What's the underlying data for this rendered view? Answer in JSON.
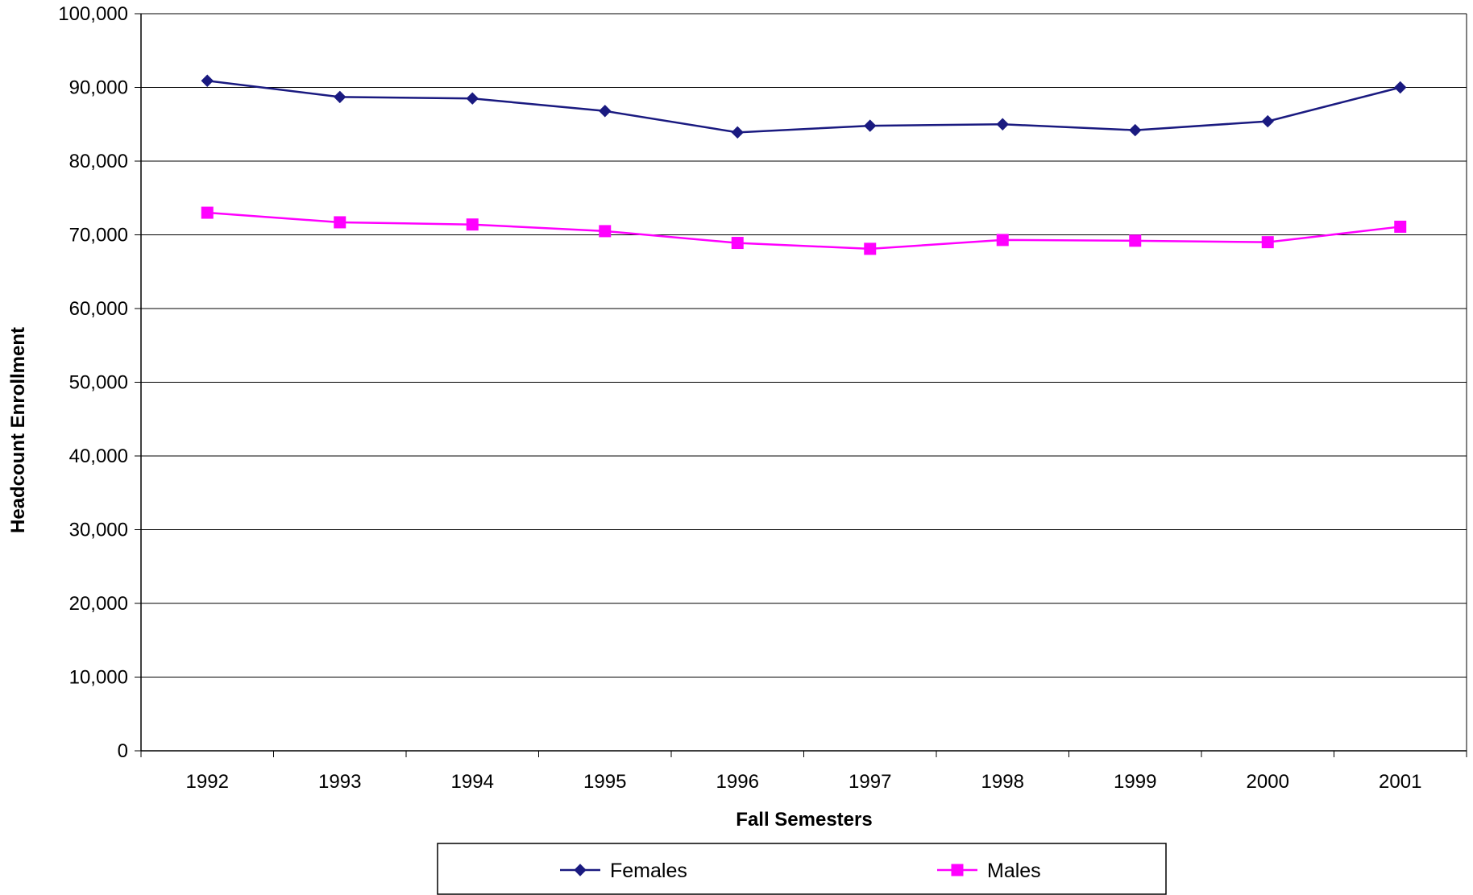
{
  "chart_data": {
    "type": "line",
    "categories": [
      "1992",
      "1993",
      "1994",
      "1995",
      "1996",
      "1997",
      "1998",
      "1999",
      "2000",
      "2001"
    ],
    "series": [
      {
        "name": "Females",
        "color": "#1a1a80",
        "marker": "diamond",
        "values": [
          90900,
          88700,
          88500,
          86800,
          83900,
          84800,
          85000,
          84200,
          85400,
          90000
        ]
      },
      {
        "name": "Males",
        "color": "#ff00ff",
        "marker": "square",
        "values": [
          73000,
          71700,
          71400,
          70500,
          68900,
          68100,
          69300,
          69200,
          69000,
          71100
        ]
      }
    ],
    "xlabel": "Fall Semesters",
    "ylabel": "Headcount Enrollment",
    "ylim": [
      0,
      100000
    ],
    "yticks": [
      0,
      10000,
      20000,
      30000,
      40000,
      50000,
      60000,
      70000,
      80000,
      90000,
      100000
    ],
    "ytick_labels": [
      "0",
      "10,000",
      "20,000",
      "30,000",
      "40,000",
      "50,000",
      "60,000",
      "70,000",
      "80,000",
      "90,000",
      "100,000"
    ],
    "grid": "horizontal",
    "legend_position": "bottom"
  }
}
